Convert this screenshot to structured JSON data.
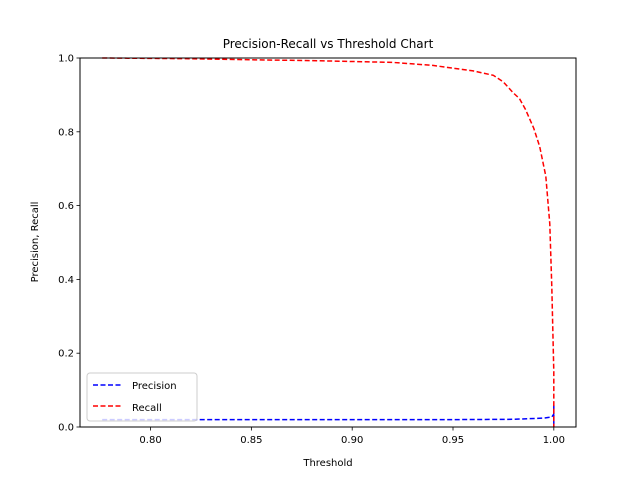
{
  "chart_data": {
    "type": "line",
    "title": "Precision-Recall vs Threshold Chart",
    "xlabel": "Threshold",
    "ylabel": "Precision, Recall",
    "xlim": [
      0.765,
      1.011
    ],
    "ylim": [
      0.0,
      1.0
    ],
    "xticks": [
      0.8,
      0.85,
      0.9,
      0.95,
      1.0
    ],
    "xtick_labels": [
      "0.80",
      "0.85",
      "0.90",
      "0.95",
      "1.00"
    ],
    "yticks": [
      0.0,
      0.2,
      0.4,
      0.6,
      0.8,
      1.0
    ],
    "ytick_labels": [
      "0.0",
      "0.2",
      "0.4",
      "0.6",
      "0.8",
      "1.0"
    ],
    "grid": false,
    "legend_position": "lower-left",
    "series": [
      {
        "name": "Precision",
        "color": "#0000ff",
        "style": "dashed",
        "x": [
          0.776,
          0.8,
          0.85,
          0.9,
          0.95,
          0.98,
          0.995,
          0.999,
          1.0,
          1.0,
          1.0,
          1.0
        ],
        "y": [
          0.02,
          0.02,
          0.02,
          0.02,
          0.02,
          0.021,
          0.024,
          0.027,
          0.035,
          0.06,
          0.0,
          0.03
        ]
      },
      {
        "name": "Recall",
        "color": "#ff0000",
        "style": "dashed",
        "x": [
          0.776,
          0.82,
          0.85,
          0.88,
          0.92,
          0.94,
          0.96,
          0.97,
          0.975,
          0.98,
          0.983,
          0.986,
          0.99,
          0.993,
          0.996,
          0.998,
          0.999,
          1.0,
          1.0
        ],
        "y": [
          1.0,
          0.998,
          0.995,
          0.993,
          0.988,
          0.98,
          0.965,
          0.953,
          0.935,
          0.905,
          0.89,
          0.86,
          0.81,
          0.76,
          0.68,
          0.55,
          0.38,
          0.15,
          0.0
        ]
      }
    ]
  }
}
